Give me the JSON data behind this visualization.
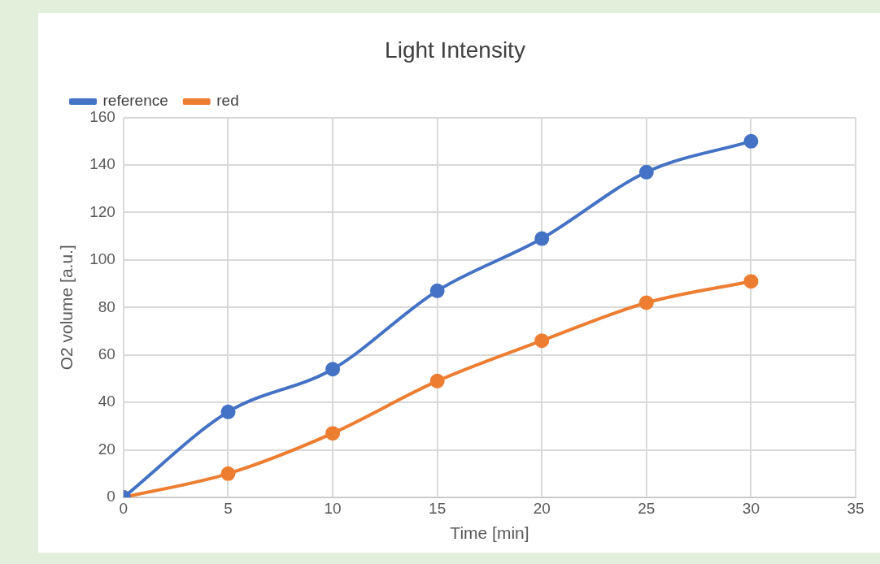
{
  "chart_data": {
    "type": "line",
    "title": "Light Intensity",
    "xlabel": "Time [min]",
    "ylabel": "O2 volume [a.u.]",
    "x": [
      0,
      5,
      10,
      15,
      20,
      25,
      30
    ],
    "series": [
      {
        "name": "reference",
        "color": "#4472c4",
        "values": [
          0,
          36,
          54,
          87,
          109,
          137,
          150
        ]
      },
      {
        "name": "red",
        "color": "#ed7d31",
        "values": [
          0,
          10,
          27,
          49,
          66,
          82,
          91
        ]
      }
    ],
    "xlim": [
      0,
      35
    ],
    "xticks": [
      0,
      5,
      10,
      15,
      20,
      25,
      30,
      35
    ],
    "ylim": [
      0,
      160
    ],
    "yticks": [
      0,
      20,
      40,
      60,
      80,
      100,
      120,
      140,
      160
    ],
    "grid": true,
    "legend": "top left",
    "marker": "circle",
    "line_style": "solid"
  }
}
